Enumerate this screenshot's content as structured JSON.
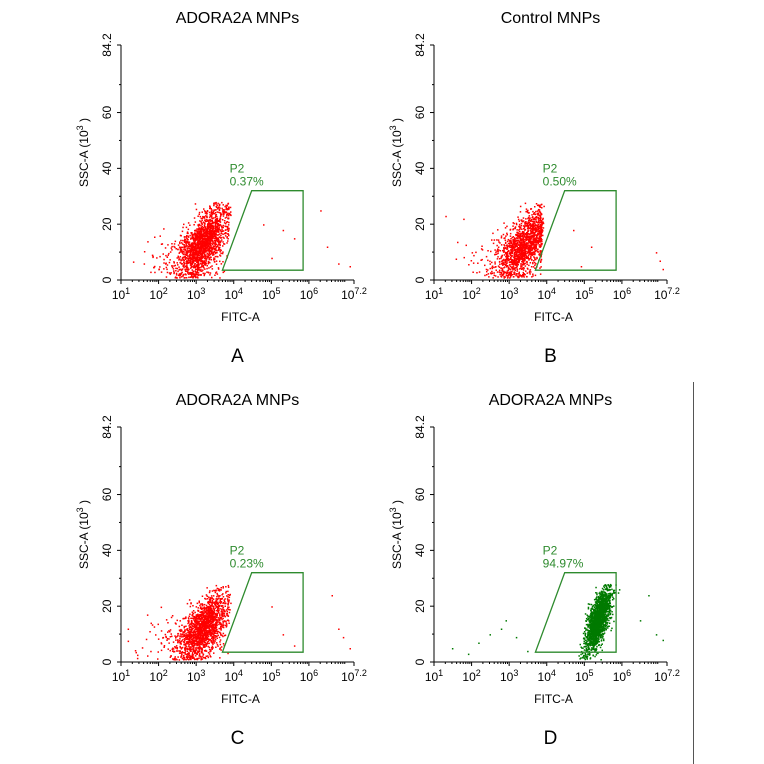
{
  "colors": {
    "red": "#ff0000",
    "green": "#007a00",
    "gate": "#2e8b2e",
    "axis": "#000000"
  },
  "chart_data": [
    {
      "type": "scatter",
      "panel_label": "A",
      "title": "ADORA2A MNPs",
      "xlabel": "FITC-A",
      "ylabel_base": "SSC-A (10",
      "ylabel_exp": "3",
      "ylabel_tail": " )",
      "x_scale": "log",
      "xlim": [
        10,
        15848932
      ],
      "ylim": [
        0,
        84.2
      ],
      "x_ticks": [
        {
          "base": "10",
          "exp": "1"
        },
        {
          "base": "10",
          "exp": "2"
        },
        {
          "base": "10",
          "exp": "3"
        },
        {
          "base": "10",
          "exp": "4"
        },
        {
          "base": "10",
          "exp": "5"
        },
        {
          "base": "10",
          "exp": "6"
        },
        {
          "base": "10",
          "exp": "7.2"
        }
      ],
      "y_ticks": [
        "0",
        "20",
        "40",
        "60",
        "84.2"
      ],
      "gate": {
        "name": "P2",
        "percent": "0.37%",
        "vertices": [
          [
            5000,
            3.5
          ],
          [
            30000,
            32
          ],
          [
            700000,
            32
          ],
          [
            700000,
            3.5
          ]
        ]
      },
      "population": {
        "color": "red",
        "center_log10_x": 3.2,
        "center_y": 14,
        "count": 1800
      },
      "outliers": [
        [
          40,
          6
        ],
        [
          60,
          3
        ],
        [
          150,
          9
        ],
        [
          400,
          4
        ],
        [
          60000,
          20
        ],
        [
          200000,
          18
        ],
        [
          400000,
          15
        ],
        [
          2000000,
          25
        ],
        [
          3000000,
          12
        ],
        [
          6000000,
          6
        ],
        [
          12000000,
          5
        ],
        [
          100000,
          8
        ]
      ],
      "grid": false,
      "legend": "none"
    },
    {
      "type": "scatter",
      "panel_label": "B",
      "title": "Control MNPs",
      "xlabel": "FITC-A",
      "ylabel_base": "SSC-A (10",
      "ylabel_exp": "3",
      "ylabel_tail": " )",
      "x_scale": "log",
      "xlim": [
        10,
        15848932
      ],
      "ylim": [
        0,
        84.2
      ],
      "x_ticks": [
        {
          "base": "10",
          "exp": "1"
        },
        {
          "base": "10",
          "exp": "2"
        },
        {
          "base": "10",
          "exp": "3"
        },
        {
          "base": "10",
          "exp": "4"
        },
        {
          "base": "10",
          "exp": "5"
        },
        {
          "base": "10",
          "exp": "6"
        },
        {
          "base": "10",
          "exp": "7.2"
        }
      ],
      "y_ticks": [
        "0",
        "20",
        "40",
        "60",
        "84.2"
      ],
      "gate": {
        "name": "P2",
        "percent": "0.50%",
        "vertices": [
          [
            5000,
            3.5
          ],
          [
            30000,
            32
          ],
          [
            700000,
            32
          ],
          [
            700000,
            3.5
          ]
        ]
      },
      "population": {
        "color": "red",
        "center_log10_x": 3.4,
        "center_y": 13,
        "count": 1500
      },
      "outliers": [
        [
          20,
          23
        ],
        [
          60,
          22
        ],
        [
          100,
          10
        ],
        [
          300,
          6
        ],
        [
          50000,
          18
        ],
        [
          150000,
          12
        ],
        [
          8000000,
          10
        ],
        [
          10000000,
          7
        ],
        [
          12000000,
          4
        ],
        [
          80000,
          5
        ]
      ],
      "grid": false,
      "legend": "none"
    },
    {
      "type": "scatter",
      "panel_label": "C",
      "title": "ADORA2A MNPs",
      "xlabel": "FITC-A",
      "ylabel_base": "SSC-A (10",
      "ylabel_exp": "3",
      "ylabel_tail": " )",
      "x_scale": "log",
      "xlim": [
        10,
        15848932
      ],
      "ylim": [
        0,
        84.2
      ],
      "x_ticks": [
        {
          "base": "10",
          "exp": "1"
        },
        {
          "base": "10",
          "exp": "2"
        },
        {
          "base": "10",
          "exp": "3"
        },
        {
          "base": "10",
          "exp": "4"
        },
        {
          "base": "10",
          "exp": "5"
        },
        {
          "base": "10",
          "exp": "6"
        },
        {
          "base": "10",
          "exp": "7.2"
        }
      ],
      "y_ticks": [
        "0",
        "20",
        "40",
        "60",
        "84.2"
      ],
      "gate": {
        "name": "P2",
        "percent": "0.23%",
        "vertices": [
          [
            5000,
            3.5
          ],
          [
            30000,
            32
          ],
          [
            700000,
            32
          ],
          [
            700000,
            3.5
          ]
        ]
      },
      "population": {
        "color": "red",
        "center_log10_x": 3.2,
        "center_y": 13,
        "count": 1700
      },
      "outliers": [
        [
          15,
          12
        ],
        [
          60,
          4
        ],
        [
          300,
          5
        ],
        [
          100000,
          20
        ],
        [
          200000,
          10
        ],
        [
          400000,
          6
        ],
        [
          4000000,
          24
        ],
        [
          6000000,
          12
        ],
        [
          12000000,
          5
        ],
        [
          8000000,
          9
        ]
      ],
      "grid": false,
      "legend": "none"
    },
    {
      "type": "scatter",
      "panel_label": "D",
      "title": "ADORA2A MNPs",
      "xlabel": "FITC-A",
      "ylabel_base": "SSC-A (10",
      "ylabel_exp": "3",
      "ylabel_tail": " )",
      "x_scale": "log",
      "xlim": [
        10,
        15848932
      ],
      "ylim": [
        0,
        84.2
      ],
      "x_ticks": [
        {
          "base": "10",
          "exp": "1"
        },
        {
          "base": "10",
          "exp": "2"
        },
        {
          "base": "10",
          "exp": "3"
        },
        {
          "base": "10",
          "exp": "4"
        },
        {
          "base": "10",
          "exp": "5"
        },
        {
          "base": "10",
          "exp": "6"
        },
        {
          "base": "10",
          "exp": "7.2"
        }
      ],
      "y_ticks": [
        "0",
        "20",
        "40",
        "60",
        "84.2"
      ],
      "gate": {
        "name": "P2",
        "percent": "94.97%",
        "vertices": [
          [
            5000,
            3.5
          ],
          [
            30000,
            32
          ],
          [
            700000,
            32
          ],
          [
            700000,
            3.5
          ]
        ]
      },
      "population": {
        "color": "green",
        "center_log10_x": 5.35,
        "center_y": 15,
        "count": 1700
      },
      "outliers": [
        [
          30,
          5
        ],
        [
          80,
          3
        ],
        [
          150,
          7
        ],
        [
          300,
          10
        ],
        [
          600,
          12
        ],
        [
          1500,
          9
        ],
        [
          3000,
          4
        ],
        [
          800,
          15
        ],
        [
          5000000,
          24
        ],
        [
          8000000,
          10
        ],
        [
          12000000,
          8
        ],
        [
          3000000,
          15
        ]
      ],
      "grid": false,
      "legend": "none"
    }
  ]
}
